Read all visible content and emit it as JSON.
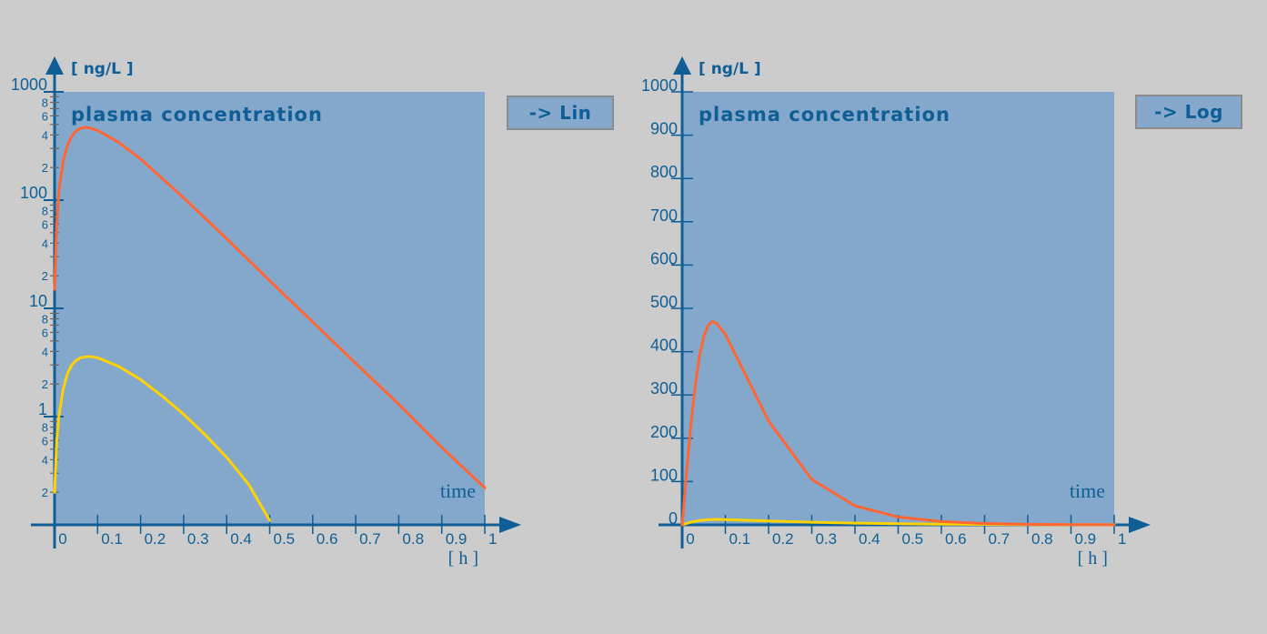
{
  "colors": {
    "background": "#cccccc",
    "plot_bg": "#84a7cc",
    "axis": "#0f5f96",
    "minor_tick": "#666666",
    "orange": "#ff6633",
    "yellow": "#ffd200"
  },
  "buttons": {
    "left": "-> Lin",
    "right": "-> Log"
  },
  "chart_data": [
    {
      "type": "line",
      "scale": "log",
      "title": "plasma concentration",
      "ylabel": "[ ng/L ]",
      "xlabel": "[ h ]",
      "x_annotation": "time",
      "xlim": [
        0,
        1
      ],
      "ylim": [
        0.1,
        1000
      ],
      "x_ticks": [
        "0",
        "0.1",
        "0.2",
        "0.3",
        "0.4",
        "0.5",
        "0.6",
        "0.7",
        "0.8",
        "0.9",
        "1"
      ],
      "y_major_ticks": [
        "1000",
        "100",
        "10",
        "1"
      ],
      "y_minor_labels": [
        "8",
        "6",
        "4",
        "2"
      ],
      "grid": false,
      "series": [
        {
          "name": "orange",
          "color": "#ff6633",
          "x": [
            0.0,
            0.005,
            0.01,
            0.02,
            0.03,
            0.04,
            0.05,
            0.06,
            0.07,
            0.08,
            0.1,
            0.15,
            0.2,
            0.3,
            0.4,
            0.5,
            0.6,
            0.7,
            0.8,
            0.9,
            1.0
          ],
          "y": [
            15,
            60,
            120,
            230,
            320,
            390,
            435,
            460,
            470,
            465,
            440,
            340,
            240,
            105,
            44,
            18,
            7.5,
            3.1,
            1.3,
            0.52,
            0.22
          ]
        },
        {
          "name": "yellow",
          "color": "#ffd200",
          "x": [
            0.0,
            0.005,
            0.01,
            0.02,
            0.03,
            0.04,
            0.05,
            0.06,
            0.08,
            0.1,
            0.15,
            0.2,
            0.25,
            0.3,
            0.35,
            0.4,
            0.45,
            0.5
          ],
          "y": [
            0.2,
            0.6,
            1.0,
            1.8,
            2.5,
            3.0,
            3.3,
            3.5,
            3.6,
            3.5,
            2.9,
            2.2,
            1.55,
            1.05,
            0.68,
            0.42,
            0.24,
            0.11
          ]
        }
      ]
    },
    {
      "type": "line",
      "scale": "linear",
      "title": "plasma concentration",
      "ylabel": "[ ng/L ]",
      "xlabel": "[ h ]",
      "x_annotation": "time",
      "xlim": [
        0,
        1
      ],
      "ylim": [
        0,
        1000
      ],
      "x_ticks": [
        "0",
        "0.1",
        "0.2",
        "0.3",
        "0.4",
        "0.5",
        "0.6",
        "0.7",
        "0.8",
        "0.9",
        "1"
      ],
      "y_ticks": [
        "0",
        "100",
        "200",
        "300",
        "400",
        "500",
        "600",
        "700",
        "800",
        "900",
        "1000"
      ],
      "grid": false,
      "series": [
        {
          "name": "orange",
          "color": "#ff6633",
          "x": [
            0.0,
            0.005,
            0.01,
            0.02,
            0.03,
            0.04,
            0.05,
            0.06,
            0.07,
            0.08,
            0.1,
            0.15,
            0.2,
            0.3,
            0.4,
            0.5,
            0.6,
            0.7,
            0.8,
            0.9,
            1.0
          ],
          "y": [
            0,
            60,
            120,
            230,
            320,
            390,
            435,
            460,
            470,
            465,
            440,
            340,
            240,
            105,
            44,
            18,
            7.5,
            3.1,
            1.3,
            0.52,
            0.22
          ]
        },
        {
          "name": "yellow",
          "color": "#ffd200",
          "x": [
            0.0,
            0.02,
            0.04,
            0.06,
            0.08,
            0.1,
            0.2,
            0.3,
            0.4,
            0.5,
            0.6,
            0.7,
            0.8,
            0.9,
            1.0
          ],
          "y": [
            0,
            6,
            10,
            12,
            12.5,
            12,
            9,
            6,
            4,
            2.5,
            1.5,
            1,
            0.5,
            0.3,
            0.2
          ]
        }
      ]
    }
  ]
}
